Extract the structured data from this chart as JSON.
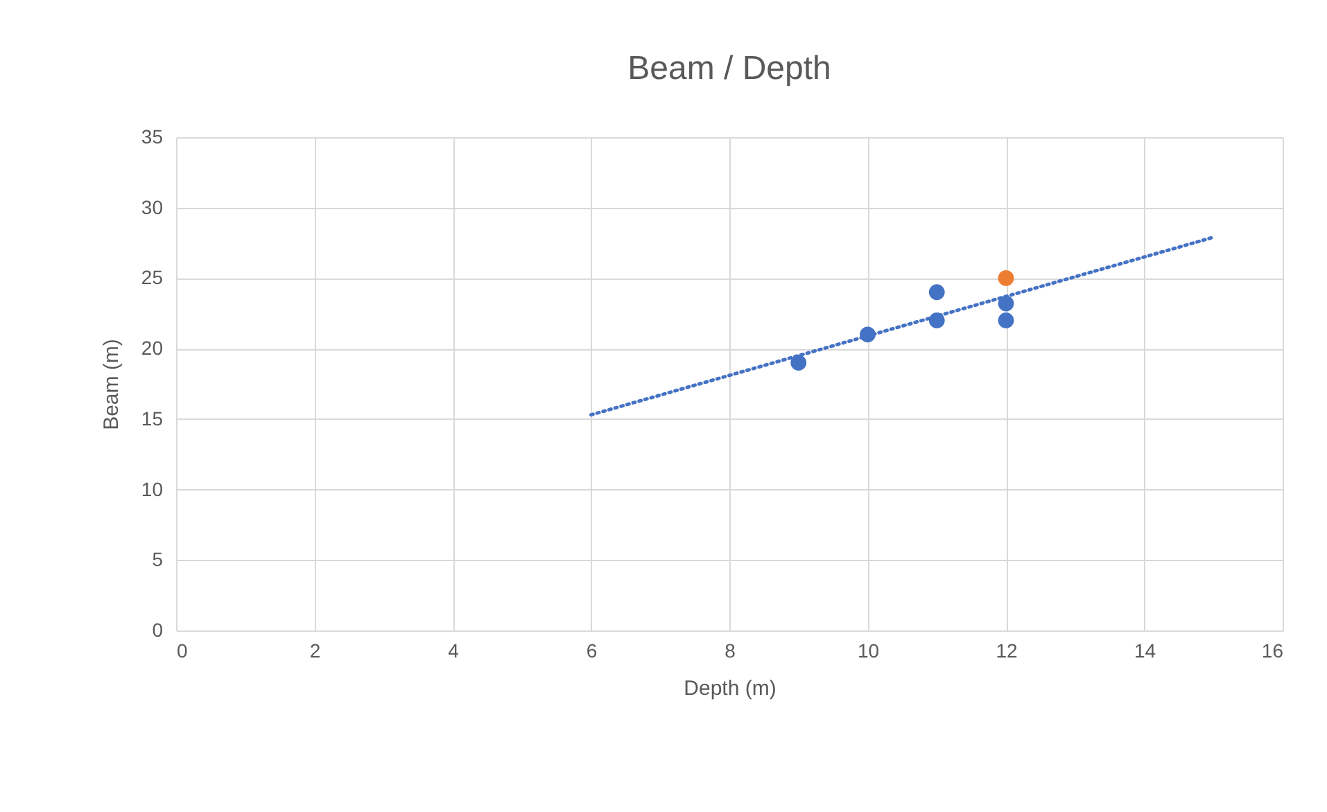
{
  "chart_data": {
    "type": "scatter",
    "title": "Beam / Depth",
    "xlabel": "Depth (m)",
    "ylabel": "Beam (m)",
    "xlim": [
      0,
      16
    ],
    "xticks": [
      0,
      2,
      4,
      6,
      8,
      10,
      12,
      14,
      16
    ],
    "ylim": [
      0,
      35
    ],
    "yticks": [
      0,
      5,
      10,
      15,
      20,
      25,
      30,
      35
    ],
    "grid": true,
    "marker": "circle",
    "series": [
      {
        "color": "#4472c4",
        "x": [
          9,
          10,
          11,
          11,
          12,
          12
        ],
        "values": [
          19,
          21,
          24,
          22,
          23.2,
          22
        ]
      },
      {
        "color": "#ed7d31",
        "x": [
          12
        ],
        "values": [
          25
        ]
      },
      {
        "type": "line",
        "color": "#4472c4",
        "line_style": "dotted",
        "marker": "none",
        "x": [
          6,
          15
        ],
        "values": [
          15.3,
          27.9
        ]
      }
    ]
  }
}
